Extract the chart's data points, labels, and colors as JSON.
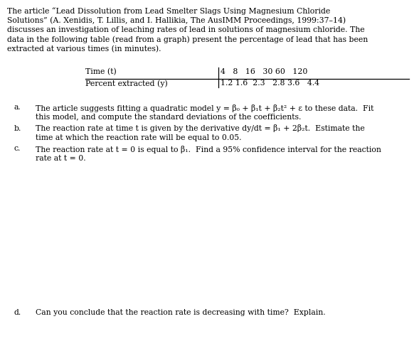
{
  "bg_color": "#ffffff",
  "text_color": "#000000",
  "fig_width": 5.89,
  "fig_height": 4.8,
  "dpi": 100,
  "font_size": 7.8,
  "font_family": "DejaVu Serif",
  "intro_line1": "The article “Lead Dissolution from Lead Smelter Slags Using Magnesium Chloride",
  "intro_line2": "Solutions” (A. Xenidis, T. Lillis, and I. Hallikia, The AusIMM Proceedings, 1999:37–14)",
  "intro_line3": "discusses an investigation of leaching rates of lead in solutions of magnesium chloride. The",
  "intro_line4": "data in the following table (read from a graph) present the percentage of lead that has been",
  "intro_line5": "extracted at various times (in minutes).",
  "table_label1": "Time (t)",
  "table_vals1": "4   8   16   30 60   120",
  "table_label2": "Percent extracted (y)",
  "table_vals2": "1.2 1.6  2.3   2.8 3.6   4.4",
  "item_a_label": "a.",
  "item_a_line1": "The article suggests fitting a quadratic model y = β₀ + β₁t + β₂t² + ε to these data.  Fit",
  "item_a_line2": "this model, and compute the standard deviations of the coefficients.",
  "item_b_label": "b.",
  "item_b_line1": "The reaction rate at time t is given by the derivative dy/dt = β₁ + 2β₂t.  Estimate the",
  "item_b_line2": "time at which the reaction rate will be equal to 0.05.",
  "item_c_label": "c.",
  "item_c_line1": "The reaction rate at t = 0 is equal to β₁.  Find a 95% confidence interval for the reaction",
  "item_c_line2": "rate at t = 0.",
  "item_d_label": "d.",
  "item_d_line1": "Can you conclude that the reaction rate is decreasing with time?  Explain."
}
